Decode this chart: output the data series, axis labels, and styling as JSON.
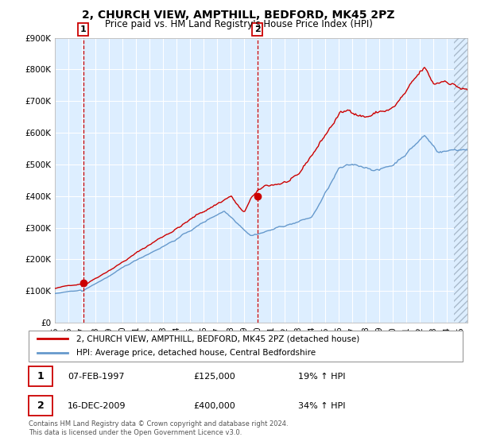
{
  "title": "2, CHURCH VIEW, AMPTHILL, BEDFORD, MK45 2PZ",
  "subtitle": "Price paid vs. HM Land Registry's House Price Index (HPI)",
  "legend_line1": "2, CHURCH VIEW, AMPTHILL, BEDFORD, MK45 2PZ (detached house)",
  "legend_line2": "HPI: Average price, detached house, Central Bedfordshire",
  "transaction1_date": "07-FEB-1997",
  "transaction1_price": "£125,000",
  "transaction1_hpi": "19% ↑ HPI",
  "transaction2_date": "16-DEC-2009",
  "transaction2_price": "£400,000",
  "transaction2_hpi": "34% ↑ HPI",
  "footer": "Contains HM Land Registry data © Crown copyright and database right 2024.\nThis data is licensed under the Open Government Licence v3.0.",
  "xmin": 1995.0,
  "xmax": 2025.5,
  "ymin": 0,
  "ymax": 900000,
  "yticks": [
    0,
    100000,
    200000,
    300000,
    400000,
    500000,
    600000,
    700000,
    800000,
    900000
  ],
  "ytick_labels": [
    "£0",
    "£100K",
    "£200K",
    "£300K",
    "£400K",
    "£500K",
    "£600K",
    "£700K",
    "£800K",
    "£900K"
  ],
  "background_color": "#ffffff",
  "plot_bg_color": "#ddeeff",
  "grid_color": "#ffffff",
  "red_line_color": "#cc0000",
  "blue_line_color": "#6699cc",
  "vline_color": "#cc0000",
  "transaction1_x": 1997.1,
  "transaction1_y": 125000,
  "transaction2_x": 2009.96,
  "transaction2_y": 400000,
  "hatch_start": 2024.5
}
